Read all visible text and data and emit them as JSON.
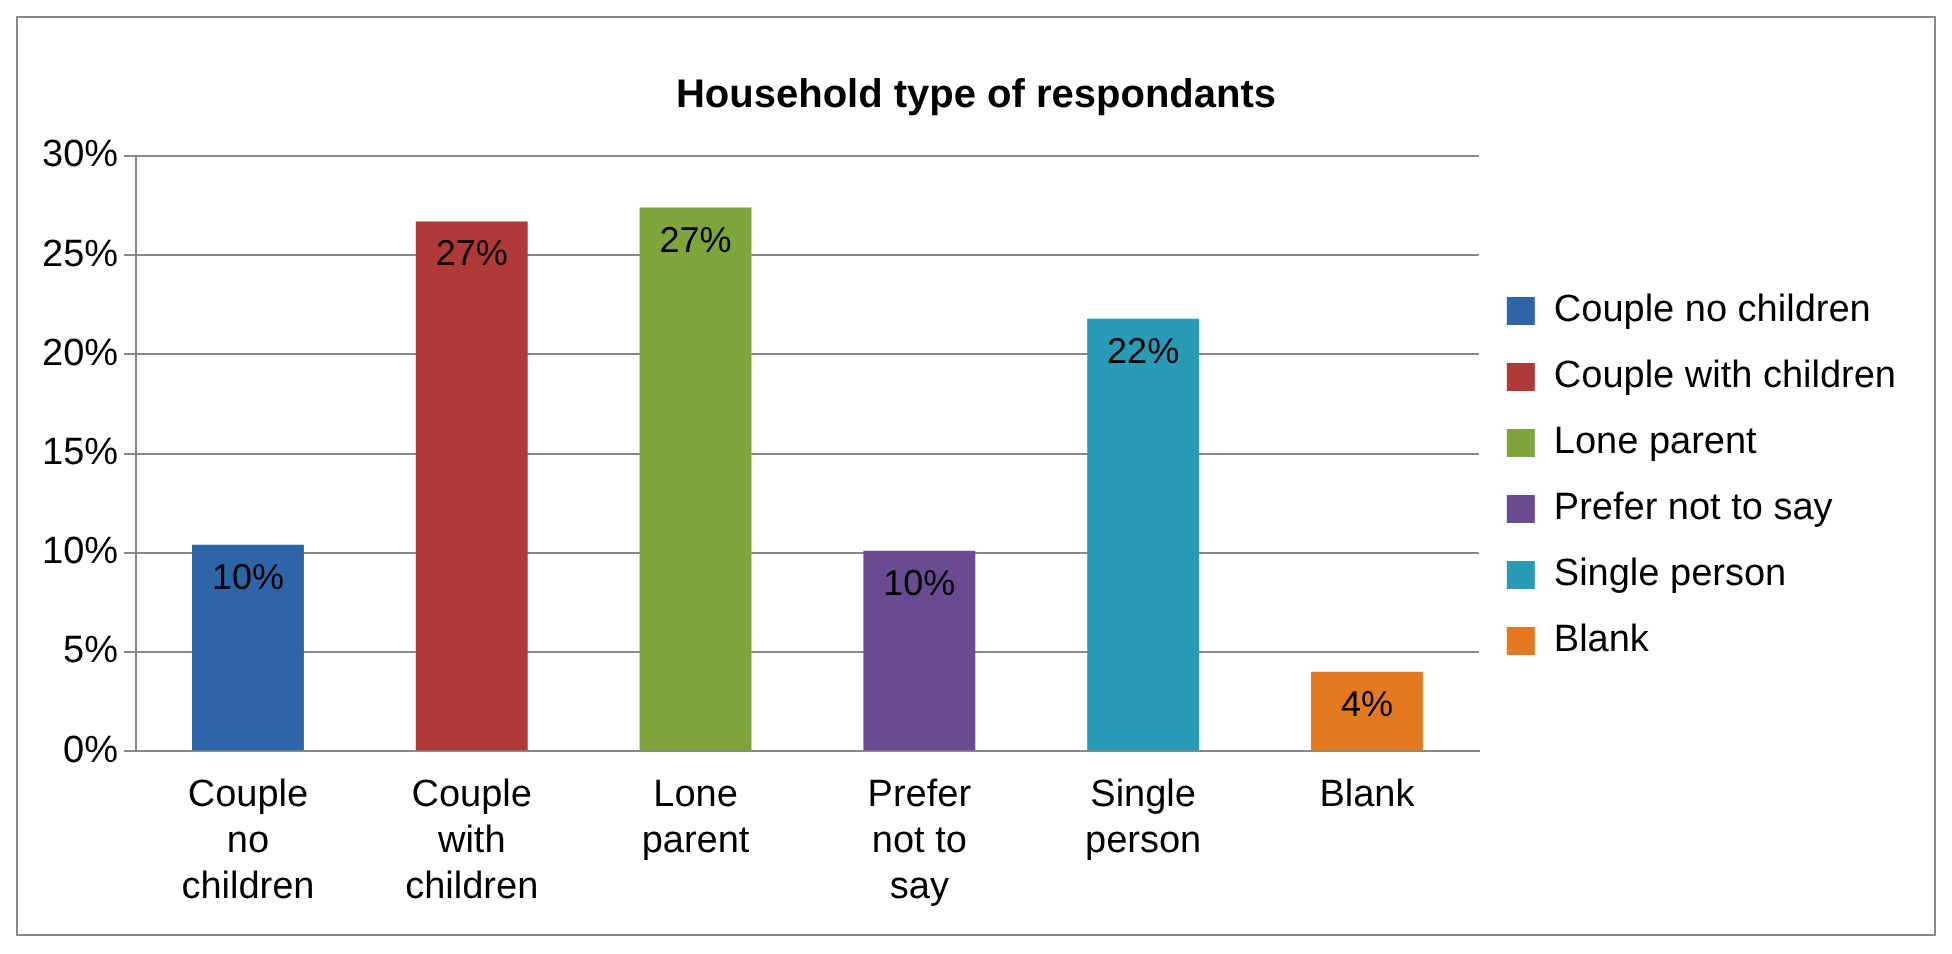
{
  "chart_data": {
    "type": "bar",
    "title": "Household type of respondants",
    "categories": [
      "Couple no children",
      "Couple with children",
      "Lone parent",
      "Prefer not to say",
      "Single person",
      "Blank"
    ],
    "series": [
      {
        "name": "Couple no children",
        "color": "#2e64a8",
        "values": [
          10.4,
          null,
          null,
          null,
          null,
          null
        ],
        "value_labels": [
          "10%",
          null,
          null,
          null,
          null,
          null
        ]
      },
      {
        "name": "Couple with children",
        "color": "#b03a37",
        "values": [
          null,
          26.7,
          null,
          null,
          null,
          null
        ],
        "value_labels": [
          null,
          "27%",
          null,
          null,
          null,
          null
        ]
      },
      {
        "name": "Lone parent",
        "color": "#7ea43c",
        "values": [
          null,
          null,
          27.4,
          null,
          null,
          null
        ],
        "value_labels": [
          null,
          null,
          "27%",
          null,
          null,
          null
        ]
      },
      {
        "name": "Prefer not to say",
        "color": "#6a4a91",
        "values": [
          null,
          null,
          null,
          10.1,
          null,
          null
        ],
        "value_labels": [
          null,
          null,
          null,
          "10%",
          null,
          null
        ]
      },
      {
        "name": "Single person",
        "color": "#2a9bb6",
        "values": [
          null,
          null,
          null,
          null,
          21.8,
          null
        ],
        "value_labels": [
          null,
          null,
          null,
          null,
          "22%",
          null
        ]
      },
      {
        "name": "Blank",
        "color": "#e5791f",
        "values": [
          null,
          null,
          null,
          null,
          null,
          4.0
        ],
        "value_labels": [
          null,
          null,
          null,
          null,
          null,
          "4%"
        ]
      }
    ],
    "ylim": [
      0,
      30
    ],
    "yticks": [
      {
        "value": 0,
        "label": "0%"
      },
      {
        "value": 5,
        "label": "5%"
      },
      {
        "value": 10,
        "label": "10%"
      },
      {
        "value": 15,
        "label": "15%"
      },
      {
        "value": 20,
        "label": "20%"
      },
      {
        "value": 25,
        "label": "25%"
      },
      {
        "value": 30,
        "label": "30%"
      }
    ],
    "grid": "y",
    "legend": "right"
  }
}
